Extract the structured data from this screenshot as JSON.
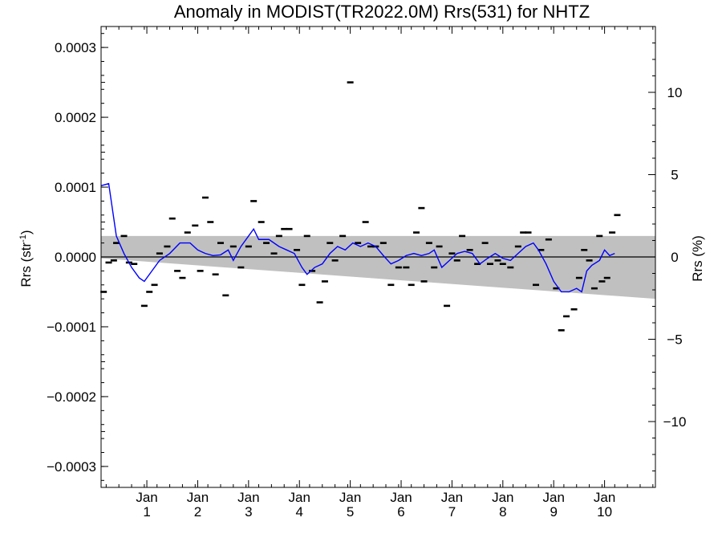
{
  "chart_data": {
    "type": "scatter",
    "title": "Anomaly in MODIST(TR2022.0M) Rrs(531) for NHTZ",
    "ylabel_left": "Rrs (str",
    "ylabel_left_sup": "-1",
    "ylabel_left_close": ")",
    "ylabel_right": "Rrs (%)",
    "x_range": [
      0,
      10.9
    ],
    "ylim": [
      -0.00033,
      0.00033
    ],
    "yticks_left": [
      -0.0003,
      -0.0002,
      -0.0001,
      0.0,
      0.0001,
      0.0002,
      0.0003
    ],
    "ytick_labels_left": [
      "−0.0003",
      "−0.0002",
      "−0.0001",
      "0.0000",
      "0.0001",
      "0.0002",
      "0.0003"
    ],
    "right_ylim": [
      -14,
      14
    ],
    "yticks_right": [
      -10,
      -5,
      0,
      5,
      10
    ],
    "ytick_labels_right": [
      "−10",
      "−5",
      "0",
      "5",
      "10"
    ],
    "xticks": [
      {
        "x": 0.9,
        "top": "Jan",
        "bottom": "1"
      },
      {
        "x": 1.9,
        "top": "Jan",
        "bottom": "2"
      },
      {
        "x": 2.9,
        "top": "Jan",
        "bottom": "3"
      },
      {
        "x": 3.9,
        "top": "Jan",
        "bottom": "4"
      },
      {
        "x": 4.9,
        "top": "Jan",
        "bottom": "5"
      },
      {
        "x": 5.9,
        "top": "Jan",
        "bottom": "6"
      },
      {
        "x": 6.9,
        "top": "Jan",
        "bottom": "7"
      },
      {
        "x": 7.9,
        "top": "Jan",
        "bottom": "8"
      },
      {
        "x": 8.9,
        "top": "Jan",
        "bottom": "9"
      },
      {
        "x": 9.9,
        "top": "Jan",
        "bottom": "10"
      }
    ],
    "band": {
      "color": "#c0c0c0",
      "upper": [
        [
          0,
          3e-05
        ],
        [
          10.9,
          3e-05
        ]
      ],
      "lower": [
        [
          0,
          -2e-06
        ],
        [
          10.9,
          -6e-05
        ]
      ]
    },
    "zero_line": 0,
    "points": [
      [
        0.05,
        -5e-05
      ],
      [
        0.15,
        -8e-06
      ],
      [
        0.25,
        -5e-06
      ],
      [
        0.3,
        2e-05
      ],
      [
        0.45,
        3e-05
      ],
      [
        0.55,
        -8e-06
      ],
      [
        0.65,
        -1e-05
      ],
      [
        0.85,
        -7e-05
      ],
      [
        0.95,
        -5e-05
      ],
      [
        1.05,
        -4e-05
      ],
      [
        1.15,
        5e-06
      ],
      [
        1.3,
        1.5e-05
      ],
      [
        1.4,
        5.5e-05
      ],
      [
        1.5,
        -2e-05
      ],
      [
        1.6,
        -3e-05
      ],
      [
        1.7,
        3.5e-05
      ],
      [
        1.85,
        4.5e-05
      ],
      [
        1.95,
        -2e-05
      ],
      [
        2.05,
        8.5e-05
      ],
      [
        2.15,
        5e-05
      ],
      [
        2.25,
        -2.5e-05
      ],
      [
        2.35,
        2e-05
      ],
      [
        2.45,
        -5.5e-05
      ],
      [
        2.6,
        1.5e-05
      ],
      [
        2.75,
        -1.5e-05
      ],
      [
        2.9,
        1.5e-05
      ],
      [
        3.0,
        8e-05
      ],
      [
        3.15,
        5e-05
      ],
      [
        3.25,
        2e-05
      ],
      [
        3.4,
        5e-06
      ],
      [
        3.5,
        3e-05
      ],
      [
        3.6,
        4e-05
      ],
      [
        3.7,
        4e-05
      ],
      [
        3.85,
        1e-05
      ],
      [
        3.95,
        -4e-05
      ],
      [
        4.05,
        3e-05
      ],
      [
        4.15,
        -2e-05
      ],
      [
        4.3,
        -6.5e-05
      ],
      [
        4.4,
        -3.5e-05
      ],
      [
        4.5,
        2e-05
      ],
      [
        4.6,
        -5e-06
      ],
      [
        4.75,
        3e-05
      ],
      [
        4.9,
        0.00025
      ],
      [
        5.05,
        2e-05
      ],
      [
        5.2,
        5e-05
      ],
      [
        5.3,
        1.5e-05
      ],
      [
        5.4,
        1.5e-05
      ],
      [
        5.55,
        2e-05
      ],
      [
        5.7,
        -4e-05
      ],
      [
        5.85,
        -1.5e-05
      ],
      [
        6.0,
        -1.5e-05
      ],
      [
        6.1,
        -4e-05
      ],
      [
        6.2,
        3.5e-05
      ],
      [
        6.3,
        7e-05
      ],
      [
        6.35,
        -3.5e-05
      ],
      [
        6.45,
        2e-05
      ],
      [
        6.55,
        -1.5e-05
      ],
      [
        6.65,
        1.5e-05
      ],
      [
        6.8,
        -7e-05
      ],
      [
        6.9,
        5e-06
      ],
      [
        7.0,
        -5e-06
      ],
      [
        7.1,
        3e-05
      ],
      [
        7.25,
        1e-05
      ],
      [
        7.4,
        -1e-05
      ],
      [
        7.55,
        2e-05
      ],
      [
        7.65,
        -1e-05
      ],
      [
        7.8,
        -5e-06
      ],
      [
        7.9,
        -1e-05
      ],
      [
        8.05,
        -1.5e-05
      ],
      [
        8.2,
        1.5e-05
      ],
      [
        8.3,
        3.5e-05
      ],
      [
        8.4,
        3.5e-05
      ],
      [
        8.55,
        -4e-05
      ],
      [
        8.65,
        1e-05
      ],
      [
        8.8,
        2.5e-05
      ],
      [
        8.95,
        -4.5e-05
      ],
      [
        9.05,
        -0.000105
      ],
      [
        9.15,
        -8.5e-05
      ],
      [
        9.3,
        -7.5e-05
      ],
      [
        9.4,
        -3e-05
      ],
      [
        9.5,
        1e-05
      ],
      [
        9.6,
        -5e-06
      ],
      [
        9.7,
        -4.5e-05
      ],
      [
        9.8,
        3e-05
      ],
      [
        9.85,
        -3.5e-05
      ],
      [
        9.95,
        -3e-05
      ],
      [
        10.05,
        3.5e-05
      ],
      [
        10.15,
        6e-05
      ]
    ],
    "line": {
      "color": "#0000ff",
      "points": [
        [
          0.0,
          0.000102
        ],
        [
          0.15,
          0.000105
        ],
        [
          0.3,
          3e-05
        ],
        [
          0.45,
          5e-06
        ],
        [
          0.6,
          -1.5e-05
        ],
        [
          0.75,
          -3e-05
        ],
        [
          0.85,
          -3.5e-05
        ],
        [
          1.0,
          -2e-05
        ],
        [
          1.15,
          -5e-06
        ],
        [
          1.35,
          5e-06
        ],
        [
          1.55,
          2e-05
        ],
        [
          1.75,
          2e-05
        ],
        [
          1.9,
          1e-05
        ],
        [
          2.05,
          5e-06
        ],
        [
          2.2,
          2e-06
        ],
        [
          2.35,
          3e-06
        ],
        [
          2.5,
          1e-05
        ],
        [
          2.6,
          -5e-06
        ],
        [
          2.75,
          1.5e-05
        ],
        [
          2.9,
          3e-05
        ],
        [
          3.0,
          4e-05
        ],
        [
          3.1,
          2.5e-05
        ],
        [
          3.3,
          2.5e-05
        ],
        [
          3.5,
          1.5e-05
        ],
        [
          3.65,
          1e-05
        ],
        [
          3.8,
          5e-06
        ],
        [
          3.95,
          -1.5e-05
        ],
        [
          4.05,
          -2.5e-05
        ],
        [
          4.2,
          -1.5e-05
        ],
        [
          4.35,
          -1e-05
        ],
        [
          4.5,
          5e-06
        ],
        [
          4.65,
          1.5e-05
        ],
        [
          4.8,
          1e-05
        ],
        [
          4.95,
          2e-05
        ],
        [
          5.1,
          1.5e-05
        ],
        [
          5.25,
          2e-05
        ],
        [
          5.4,
          1.5e-05
        ],
        [
          5.55,
          2e-06
        ],
        [
          5.7,
          -1e-05
        ],
        [
          5.85,
          -5e-06
        ],
        [
          6.0,
          2e-06
        ],
        [
          6.15,
          5e-06
        ],
        [
          6.3,
          2e-06
        ],
        [
          6.45,
          5e-06
        ],
        [
          6.55,
          1e-05
        ],
        [
          6.7,
          -1.5e-05
        ],
        [
          6.85,
          -5e-06
        ],
        [
          7.0,
          5e-06
        ],
        [
          7.15,
          8e-06
        ],
        [
          7.3,
          5e-06
        ],
        [
          7.45,
          -1e-05
        ],
        [
          7.6,
          -2e-06
        ],
        [
          7.75,
          5e-06
        ],
        [
          7.9,
          -2e-06
        ],
        [
          8.05,
          -5e-06
        ],
        [
          8.2,
          5e-06
        ],
        [
          8.35,
          1.5e-05
        ],
        [
          8.5,
          2e-05
        ],
        [
          8.6,
          1e-05
        ],
        [
          8.75,
          -1e-05
        ],
        [
          8.9,
          -3.5e-05
        ],
        [
          9.05,
          -5e-05
        ],
        [
          9.2,
          -5e-05
        ],
        [
          9.35,
          -4.5e-05
        ],
        [
          9.45,
          -5e-05
        ],
        [
          9.55,
          -2e-05
        ],
        [
          9.65,
          -1.2e-05
        ],
        [
          9.8,
          -5e-06
        ],
        [
          9.9,
          1e-05
        ],
        [
          10.0,
          2e-06
        ],
        [
          10.1,
          5e-06
        ]
      ]
    },
    "grid": false,
    "legend": "none"
  }
}
